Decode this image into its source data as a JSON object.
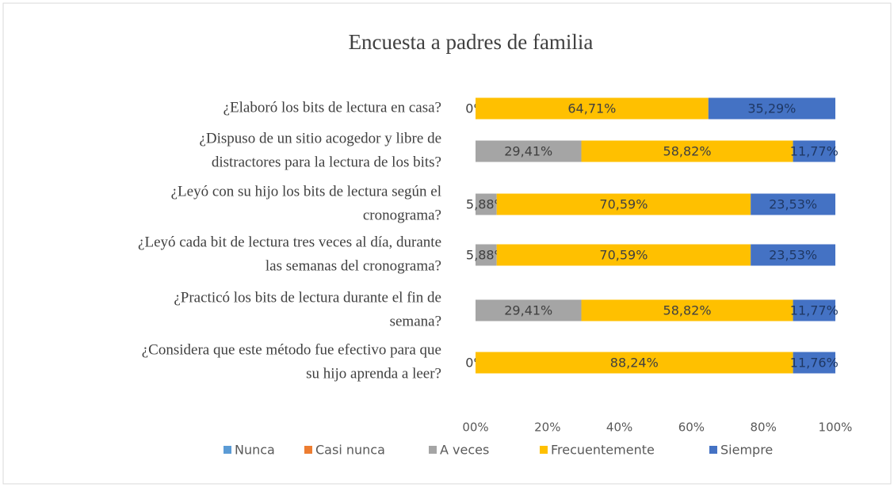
{
  "chart_data": {
    "type": "stacked_barh",
    "title": "Encuesta a padres de familia",
    "categories": [
      [
        "¿Elaboró los bits de lectura en casa?"
      ],
      [
        "¿Dispuso de un sitio acogedor y libre de",
        "distractores para la lectura de los bits?"
      ],
      [
        "¿Leyó con su hijo los bits de lectura según el",
        "cronograma?"
      ],
      [
        "¿Leyó cada bit de lectura tres veces al día, durante",
        "las semanas del cronograma?"
      ],
      [
        "¿Practicó los bits de lectura durante el fin de",
        "semana?"
      ],
      [
        "¿Considera que este método fue efectivo para que",
        "su hijo aprenda a leer?"
      ]
    ],
    "series": [
      {
        "name": "Nunca",
        "color": "#5b9bd5",
        "values": [
          0,
          0,
          0,
          0,
          0,
          0
        ]
      },
      {
        "name": "Casi nunca",
        "color": "#ed7d31",
        "values": [
          0,
          0,
          0,
          0,
          0,
          0
        ]
      },
      {
        "name": "A veces",
        "color": "#a5a5a5",
        "values": [
          0,
          29.41,
          5.88,
          5.88,
          29.41,
          0
        ],
        "value_labels": [
          "0%",
          "29,41%",
          "5,88%",
          "5,88%",
          "29,41%",
          "0%"
        ]
      },
      {
        "name": "Frecuentemente",
        "color": "#ffc000",
        "values": [
          64.71,
          58.82,
          70.59,
          70.59,
          58.82,
          88.24
        ],
        "value_labels": [
          "64,71%",
          "58,82%",
          "70,59%",
          "70,59%",
          "58,82%",
          "88,24%"
        ]
      },
      {
        "name": "Siempre",
        "color": "#4472c4",
        "values": [
          35.29,
          11.77,
          23.53,
          23.53,
          11.77,
          11.76
        ],
        "value_labels": [
          "35,29%",
          "11,77%",
          "23,53%",
          "23,53%",
          "11,77%",
          "11,76%"
        ]
      }
    ],
    "xlim": [
      0,
      100
    ],
    "xticks": [
      {
        "value": 0,
        "label": "00%"
      },
      {
        "value": 20,
        "label": "20%"
      },
      {
        "value": 40,
        "label": "40%"
      },
      {
        "value": 60,
        "label": "60%"
      },
      {
        "value": 80,
        "label": "80%"
      },
      {
        "value": 100,
        "label": "100%"
      }
    ],
    "legend": "bottom",
    "grid": false
  }
}
